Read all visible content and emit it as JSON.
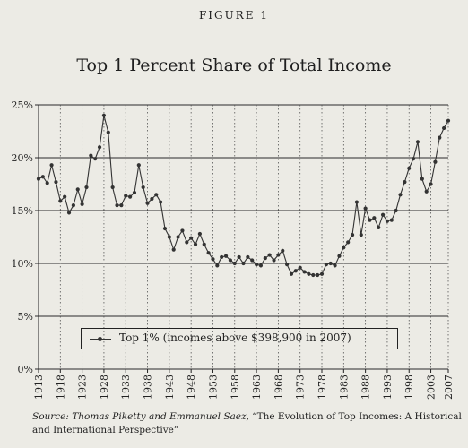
{
  "figure_label": "FIGURE 1",
  "title": "Top 1 Percent Share of Total Income",
  "source": {
    "prefix": "Source: Thomas Piketty and Emmanuel Saez, ",
    "work": "“The Evolution of Top Incomes: A Historical and International Perspective”"
  },
  "colors": {
    "background": "#ecebe5",
    "ink": "#333333"
  },
  "chart_data": {
    "type": "line",
    "xlabel": "",
    "ylabel": "",
    "ylim": [
      0,
      25
    ],
    "xlim": [
      1913,
      2007
    ],
    "yticks": [
      "0%",
      "5%",
      "10%",
      "15%",
      "20%",
      "25%"
    ],
    "xticks": [
      "1913",
      "1918",
      "1923",
      "1928",
      "1933",
      "1938",
      "1943",
      "1948",
      "1953",
      "1958",
      "1963",
      "1968",
      "1973",
      "1978",
      "1983",
      "1988",
      "1993",
      "1998",
      "2003",
      "2007"
    ],
    "grid": "horizontal solid, vertical dotted",
    "legend_position": "bottom-center",
    "series": [
      {
        "name": "Top 1% (incomes above $398,900 in 2007)",
        "x": [
          1913,
          1914,
          1915,
          1916,
          1917,
          1918,
          1919,
          1920,
          1921,
          1922,
          1923,
          1924,
          1925,
          1926,
          1927,
          1928,
          1929,
          1930,
          1931,
          1932,
          1933,
          1934,
          1935,
          1936,
          1937,
          1938,
          1939,
          1940,
          1941,
          1942,
          1943,
          1944,
          1945,
          1946,
          1947,
          1948,
          1949,
          1950,
          1951,
          1952,
          1953,
          1954,
          1955,
          1956,
          1957,
          1958,
          1959,
          1960,
          1961,
          1962,
          1963,
          1964,
          1965,
          1966,
          1967,
          1968,
          1969,
          1970,
          1971,
          1972,
          1973,
          1974,
          1975,
          1976,
          1977,
          1978,
          1979,
          1980,
          1981,
          1982,
          1983,
          1984,
          1985,
          1986,
          1987,
          1988,
          1989,
          1990,
          1991,
          1992,
          1993,
          1994,
          1995,
          1996,
          1997,
          1998,
          1999,
          2000,
          2001,
          2002,
          2003,
          2004,
          2005,
          2006,
          2007
        ],
        "values": [
          18.0,
          18.2,
          17.6,
          19.3,
          17.7,
          15.9,
          16.3,
          14.8,
          15.5,
          17.0,
          15.6,
          17.2,
          20.2,
          19.9,
          21.0,
          24.0,
          22.4,
          17.2,
          15.5,
          15.5,
          16.4,
          16.3,
          16.7,
          19.3,
          17.2,
          15.7,
          16.1,
          16.5,
          15.8,
          13.3,
          12.5,
          11.3,
          12.5,
          13.1,
          12.0,
          12.4,
          11.8,
          12.8,
          11.8,
          11.0,
          10.4,
          9.8,
          10.6,
          10.7,
          10.3,
          10.0,
          10.6,
          10.0,
          10.6,
          10.3,
          9.9,
          9.8,
          10.5,
          10.8,
          10.3,
          10.8,
          11.2,
          9.9,
          9.0,
          9.3,
          9.6,
          9.2,
          9.0,
          8.9,
          8.9,
          9.0,
          9.9,
          10.0,
          9.8,
          10.7,
          11.5,
          12.0,
          12.7,
          15.8,
          12.7,
          15.2,
          14.1,
          14.3,
          13.4,
          14.6,
          14.0,
          14.1,
          15.0,
          16.5,
          17.7,
          19.0,
          19.9,
          21.5,
          18.0,
          16.8,
          17.5,
          19.6,
          21.9,
          22.8,
          23.5
        ]
      }
    ]
  }
}
